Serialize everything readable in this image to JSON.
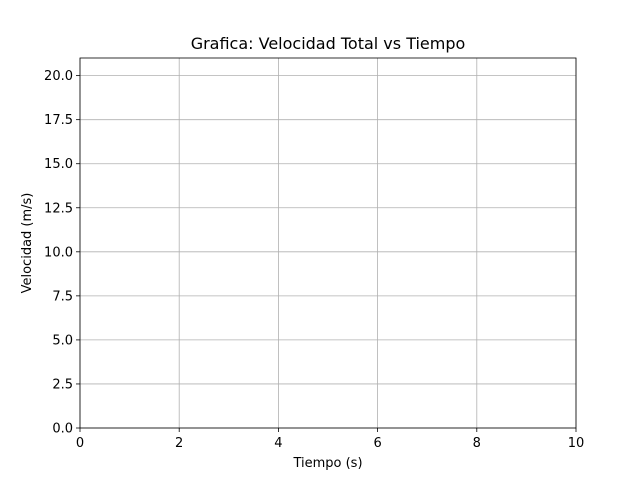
{
  "chart_data": {
    "type": "line",
    "title": "Grafica: Velocidad Total vs Tiempo",
    "xlabel": "Tiempo (s)",
    "ylabel": "Velocidad (m/s)",
    "xlim": [
      0,
      10
    ],
    "ylim": [
      0,
      21
    ],
    "xticks": [
      0,
      2,
      4,
      6,
      8,
      10
    ],
    "xtick_labels": [
      "0",
      "2",
      "4",
      "6",
      "8",
      "10"
    ],
    "yticks": [
      0,
      2.5,
      5,
      7.5,
      10,
      12.5,
      15,
      17.5,
      20
    ],
    "ytick_labels": [
      "0.0",
      "2.5",
      "5.0",
      "7.5",
      "10.0",
      "12.5",
      "15.0",
      "17.5",
      "20.0"
    ],
    "grid": true,
    "series": []
  },
  "colors": {
    "grid": "#b0b0b0",
    "axis": "#000000",
    "background": "#ffffff"
  }
}
